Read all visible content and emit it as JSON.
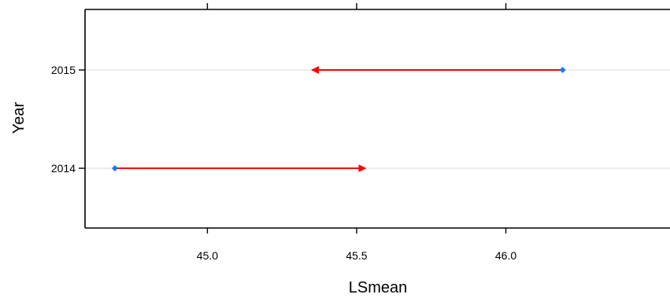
{
  "chart_data": {
    "type": "scatter",
    "subtype": "arrow-comparison",
    "title": "",
    "xlabel": "LSmean",
    "ylabel": "Year",
    "xlim": [
      44.59,
      46.55
    ],
    "x_ticks": [
      45.0,
      45.5,
      46.0
    ],
    "x_tick_labels": [
      "45.0",
      "45.5",
      "46.0"
    ],
    "x_ticks_top": true,
    "categories": [
      "2014",
      "2015"
    ],
    "points": [
      {
        "category": "2014",
        "x": 44.69
      },
      {
        "category": "2015",
        "x": 46.19
      }
    ],
    "arrows": [
      {
        "category": "2014",
        "from": 44.69,
        "to": 45.53
      },
      {
        "category": "2015",
        "from": 46.19,
        "to": 45.35
      }
    ],
    "grid": "horizontal",
    "colors": {
      "point": "#1a75ff",
      "arrow": "#ff0000",
      "grid": "#e6e6e6",
      "frame": "#000000"
    }
  }
}
